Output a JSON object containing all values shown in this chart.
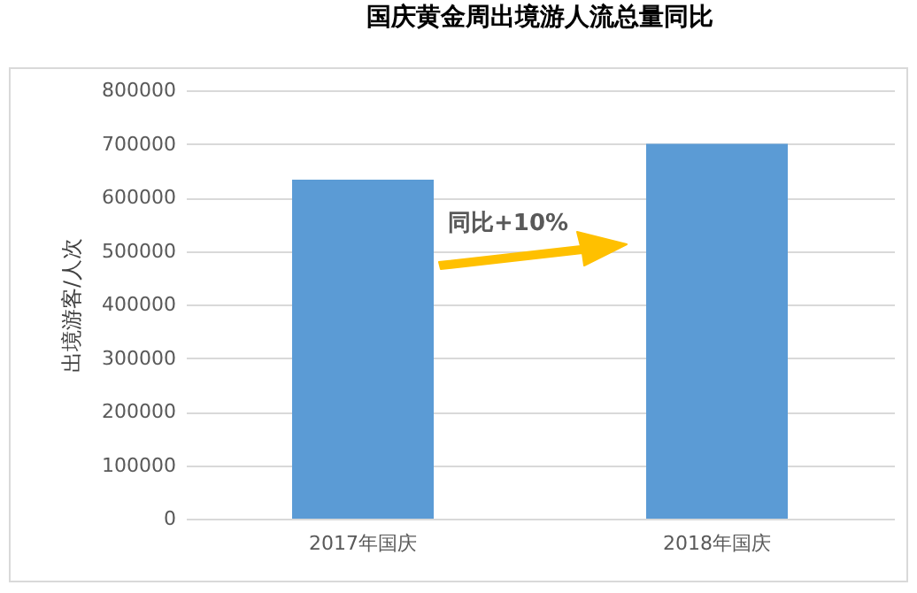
{
  "chart_data": {
    "type": "bar",
    "title": "国庆黄金周出境游人流总量同比",
    "ylabel": "出境游客/人次",
    "categories": [
      "2017年国庆",
      "2018年国庆"
    ],
    "values": [
      633000,
      700000
    ],
    "color": "#5b9bd5",
    "ylim": [
      0,
      800000
    ],
    "yticks": [
      0,
      100000,
      200000,
      300000,
      400000,
      500000,
      600000,
      700000,
      800000
    ],
    "grid": "y",
    "annotations": [
      "同比+10%"
    ]
  }
}
